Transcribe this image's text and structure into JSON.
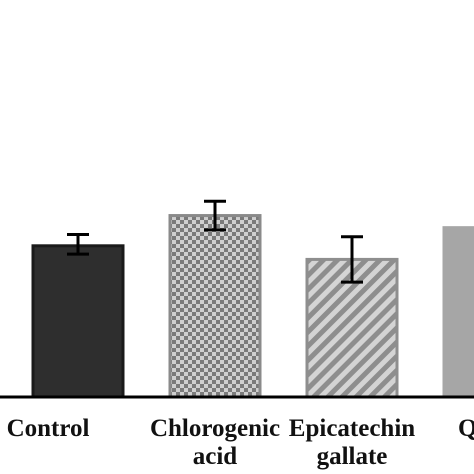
{
  "chart_data": {
    "type": "bar",
    "categories": [
      [
        "Control"
      ],
      [
        "Chlorogenic",
        "acid"
      ],
      [
        "Epicatechin",
        "gallate"
      ],
      [
        "Q"
      ]
    ],
    "values": [
      100,
      120,
      91,
      112
    ],
    "errors": [
      13,
      19,
      30,
      null
    ],
    "ylim": [
      0,
      175
    ],
    "grid": false,
    "legend": false,
    "bar_styles": [
      {
        "fill": "solid",
        "color": "#2e2e2e",
        "border": "#1a1a1a"
      },
      {
        "fill": "checker",
        "color": "#7a7a7a",
        "alt": "#cfcfcf",
        "border": "#8a8a8a"
      },
      {
        "fill": "diagonal-stripes",
        "color": "#8e8e8e",
        "alt": "#d4d4d4",
        "border": "#8e8e8e"
      },
      {
        "fill": "solid",
        "color": "#a6a6a6",
        "border": "#a6a6a6"
      }
    ],
    "axis_color": "#000000"
  }
}
